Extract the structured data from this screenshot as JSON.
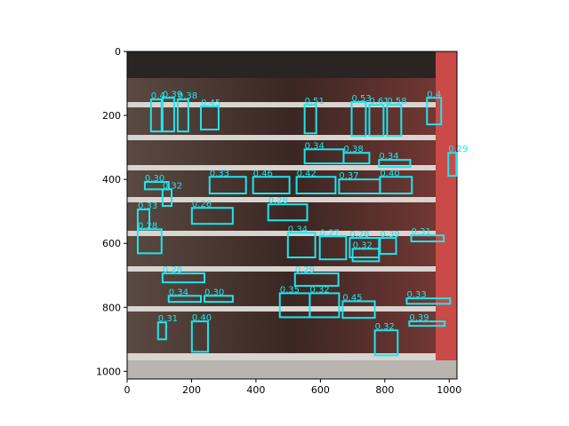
{
  "chart_data": {
    "type": "detections",
    "color": "#1ee6f0",
    "xlim": [
      0,
      1024
    ],
    "ylim": [
      1024,
      0
    ],
    "xticks": [
      0,
      200,
      400,
      600,
      800,
      1000
    ],
    "yticks": [
      0,
      200,
      400,
      600,
      800,
      1000
    ],
    "boxes": [
      [
        74,
        150,
        107,
        250
      ],
      [
        110,
        145,
        146,
        250
      ],
      [
        157,
        150,
        190,
        250
      ],
      [
        229,
        172,
        284,
        244
      ],
      [
        551,
        167,
        587,
        256
      ],
      [
        697,
        158,
        741,
        264
      ],
      [
        752,
        167,
        796,
        264
      ],
      [
        807,
        167,
        851,
        264
      ],
      [
        931,
        145,
        975,
        228
      ],
      [
        551,
        306,
        672,
        350
      ],
      [
        672,
        317,
        752,
        350
      ],
      [
        782,
        339,
        879,
        361
      ],
      [
        997,
        317,
        1022,
        389
      ],
      [
        55,
        408,
        129,
        431
      ],
      [
        110,
        431,
        138,
        483
      ],
      [
        256,
        392,
        369,
        444
      ],
      [
        391,
        392,
        504,
        444
      ],
      [
        526,
        392,
        647,
        444
      ],
      [
        658,
        400,
        785,
        444
      ],
      [
        785,
        392,
        884,
        444
      ],
      [
        33,
        494,
        69,
        556
      ],
      [
        33,
        556,
        107,
        631
      ],
      [
        201,
        489,
        328,
        539
      ],
      [
        438,
        478,
        559,
        528
      ],
      [
        499,
        567,
        584,
        644
      ],
      [
        598,
        578,
        680,
        650
      ],
      [
        691,
        583,
        782,
        644
      ],
      [
        785,
        583,
        835,
        633
      ],
      [
        882,
        575,
        983,
        594
      ],
      [
        700,
        617,
        782,
        656
      ],
      [
        110,
        694,
        240,
        722
      ],
      [
        521,
        694,
        656,
        733
      ],
      [
        240,
        764,
        328,
        783
      ],
      [
        129,
        764,
        229,
        783
      ],
      [
        474,
        756,
        567,
        831
      ],
      [
        567,
        756,
        658,
        831
      ],
      [
        669,
        781,
        769,
        833
      ],
      [
        868,
        772,
        1003,
        789
      ],
      [
        876,
        844,
        986,
        858
      ],
      [
        96,
        847,
        121,
        900
      ],
      [
        201,
        844,
        251,
        939
      ],
      [
        769,
        872,
        840,
        950
      ]
    ],
    "scores": [
      "0.4",
      "0.39",
      "0.38",
      "0.45",
      "0.51",
      "0.53",
      "0.61",
      "0.58",
      "0.4",
      "0.34",
      "0.38",
      "0.34",
      "0.29",
      "0.30",
      "0.32",
      "0.33",
      "0.46",
      "0.42",
      "0.37",
      "0.40",
      "0.33",
      "0.28",
      "0.26",
      "0.28",
      "0.34",
      "0.27",
      "0.28",
      "0.39",
      "0.31",
      "0.32",
      "0.28",
      "0.29",
      "0.30",
      "0.34",
      "0.35",
      "0.32",
      "0.45",
      "0.33",
      "0.39",
      "0.31",
      "0.40",
      "0.32"
    ]
  }
}
